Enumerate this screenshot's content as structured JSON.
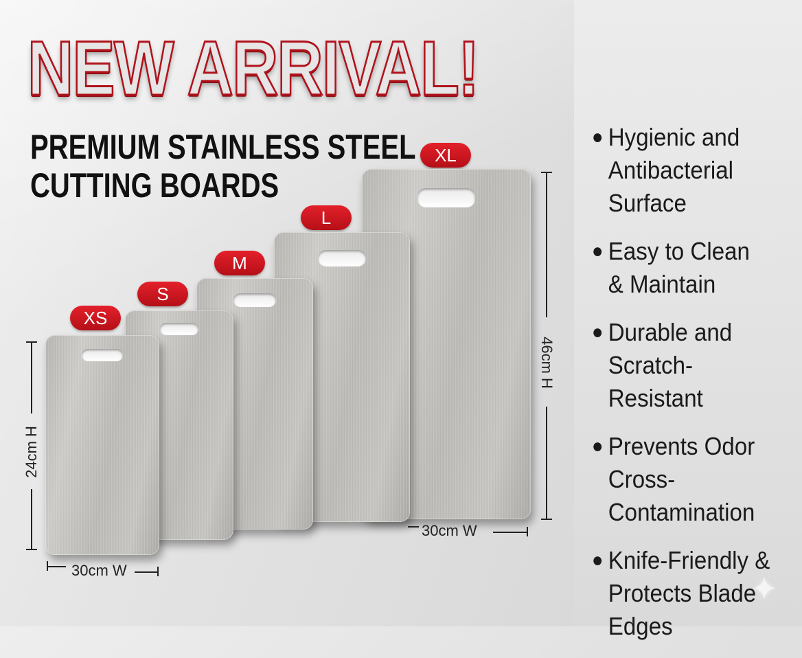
{
  "headline": "NEW ARRIVAL!",
  "subheadline": {
    "line1": "PREMIUM STAINLESS STEEL",
    "line2": "CUTTING BOARDS"
  },
  "sizes": [
    "XS",
    "S",
    "M",
    "L",
    "XL"
  ],
  "dimensions": {
    "small_height": "24cm H",
    "small_width": "30cm W",
    "large_height": "46cm H",
    "large_width": "30cm W"
  },
  "features": [
    [
      "Hygienic and",
      "Antibacterial",
      "Surface"
    ],
    [
      "Easy to Clean",
      "& Maintain"
    ],
    [
      "Durable and",
      "Scratch-Resistant"
    ],
    [
      "Prevents Odor",
      "Cross-",
      "Contamination"
    ],
    [
      "Knife-Friendly &",
      "Protects Blade",
      "Edges"
    ]
  ],
  "colors": {
    "accent_red": "#c8141d",
    "text_dark": "#111111",
    "steel": "#c4c2be"
  },
  "icons": {
    "sparkle": "sparkle-icon",
    "bullet": "bullet-dot"
  }
}
